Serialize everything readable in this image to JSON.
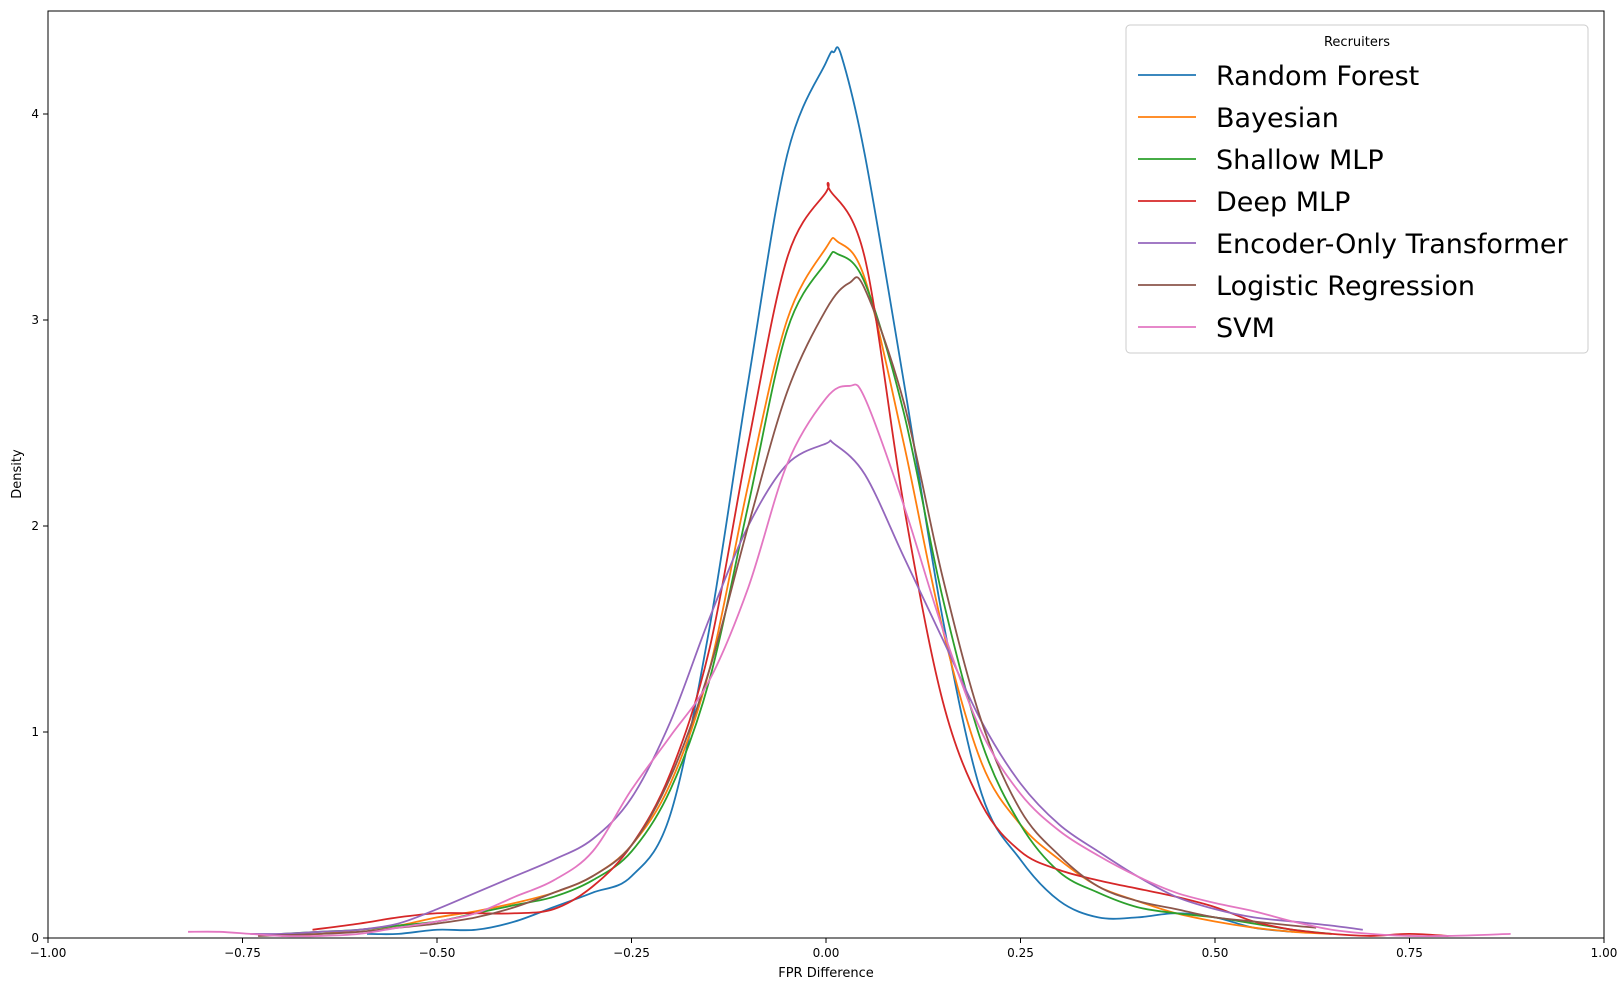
{
  "chart_data": {
    "type": "line",
    "xlabel": "FPR Difference",
    "ylabel": "Density",
    "xlim": [
      -1.0,
      1.0
    ],
    "ylim": [
      0,
      4.5
    ],
    "x_ticks": [
      -1.0,
      -0.75,
      -0.5,
      -0.25,
      0.0,
      0.25,
      0.5,
      0.75,
      1.0
    ],
    "x_tick_labels": [
      "−1.00",
      "−0.75",
      "−0.50",
      "−0.25",
      "0.00",
      "0.25",
      "0.50",
      "0.75",
      "1.00"
    ],
    "y_ticks": [
      0,
      1,
      2,
      3,
      4
    ],
    "y_tick_labels": [
      "0",
      "1",
      "2",
      "3",
      "4"
    ],
    "grid": false,
    "legend": {
      "title": "Recruiters",
      "placement": "top-right"
    },
    "series": [
      {
        "name": "Random Forest",
        "color": "#1f77b4",
        "x": [
          -0.59,
          -0.55,
          -0.5,
          -0.45,
          -0.4,
          -0.35,
          -0.3,
          -0.25,
          -0.2,
          -0.15,
          -0.1,
          -0.05,
          0.0,
          0.01,
          0.02,
          0.05,
          0.1,
          0.15,
          0.2,
          0.25,
          0.3,
          0.35,
          0.4,
          0.45,
          0.5,
          0.55,
          0.6
        ],
        "y": [
          0.02,
          0.02,
          0.04,
          0.04,
          0.08,
          0.15,
          0.22,
          0.3,
          0.6,
          1.5,
          2.7,
          3.8,
          4.25,
          4.3,
          4.28,
          3.8,
          2.7,
          1.55,
          0.7,
          0.38,
          0.18,
          0.1,
          0.1,
          0.12,
          0.1,
          0.05,
          0.03
        ]
      },
      {
        "name": "Bayesian",
        "color": "#ff7f0e",
        "x": [
          -0.7,
          -0.65,
          -0.6,
          -0.55,
          -0.5,
          -0.45,
          -0.4,
          -0.35,
          -0.3,
          -0.25,
          -0.2,
          -0.15,
          -0.1,
          -0.05,
          0.0,
          0.015,
          0.05,
          0.1,
          0.15,
          0.2,
          0.25,
          0.3,
          0.35,
          0.4,
          0.45,
          0.5,
          0.55,
          0.6,
          0.65
        ],
        "y": [
          0.01,
          0.02,
          0.04,
          0.06,
          0.1,
          0.13,
          0.17,
          0.22,
          0.3,
          0.45,
          0.75,
          1.3,
          2.2,
          3.0,
          3.35,
          3.38,
          3.2,
          2.4,
          1.5,
          0.85,
          0.55,
          0.38,
          0.25,
          0.18,
          0.12,
          0.08,
          0.05,
          0.03,
          0.02
        ]
      },
      {
        "name": "Shallow MLP",
        "color": "#2ca02c",
        "x": [
          -0.7,
          -0.65,
          -0.6,
          -0.55,
          -0.5,
          -0.45,
          -0.4,
          -0.35,
          -0.3,
          -0.25,
          -0.2,
          -0.15,
          -0.1,
          -0.05,
          0.0,
          0.015,
          0.05,
          0.1,
          0.15,
          0.2,
          0.25,
          0.3,
          0.35,
          0.4,
          0.45,
          0.5,
          0.55,
          0.6,
          0.65
        ],
        "y": [
          0.02,
          0.03,
          0.04,
          0.06,
          0.08,
          0.12,
          0.16,
          0.2,
          0.28,
          0.42,
          0.72,
          1.25,
          2.1,
          2.95,
          3.28,
          3.32,
          3.18,
          2.55,
          1.65,
          0.95,
          0.55,
          0.32,
          0.22,
          0.15,
          0.12,
          0.1,
          0.07,
          0.04,
          0.02
        ]
      },
      {
        "name": "Deep MLP",
        "color": "#d62728",
        "x": [
          -0.66,
          -0.6,
          -0.55,
          -0.5,
          -0.45,
          -0.4,
          -0.35,
          -0.3,
          -0.25,
          -0.2,
          -0.15,
          -0.1,
          -0.05,
          0.0,
          0.005,
          0.05,
          0.1,
          0.15,
          0.2,
          0.25,
          0.3,
          0.35,
          0.4,
          0.45,
          0.5,
          0.55,
          0.6,
          0.65,
          0.7,
          0.75,
          0.8
        ],
        "y": [
          0.04,
          0.07,
          0.1,
          0.12,
          0.12,
          0.12,
          0.14,
          0.25,
          0.45,
          0.8,
          1.4,
          2.4,
          3.3,
          3.62,
          3.63,
          3.3,
          2.1,
          1.15,
          0.65,
          0.42,
          0.33,
          0.28,
          0.24,
          0.2,
          0.15,
          0.08,
          0.04,
          0.02,
          0.01,
          0.02,
          0.01
        ]
      },
      {
        "name": "Encoder-Only Transformer",
        "color": "#9467bd",
        "x": [
          -0.74,
          -0.7,
          -0.65,
          -0.6,
          -0.55,
          -0.5,
          -0.45,
          -0.4,
          -0.35,
          -0.3,
          -0.25,
          -0.2,
          -0.15,
          -0.1,
          -0.05,
          0.0,
          0.01,
          0.05,
          0.1,
          0.15,
          0.2,
          0.25,
          0.3,
          0.35,
          0.4,
          0.45,
          0.5,
          0.55,
          0.6,
          0.65,
          0.69
        ],
        "y": [
          0.02,
          0.02,
          0.03,
          0.04,
          0.07,
          0.14,
          0.22,
          0.3,
          0.38,
          0.48,
          0.68,
          1.05,
          1.55,
          2.0,
          2.3,
          2.4,
          2.4,
          2.25,
          1.85,
          1.45,
          1.05,
          0.75,
          0.55,
          0.42,
          0.3,
          0.2,
          0.14,
          0.1,
          0.08,
          0.06,
          0.04
        ]
      },
      {
        "name": "Logistic Regression",
        "color": "#8c564b",
        "x": [
          -0.73,
          -0.65,
          -0.6,
          -0.55,
          -0.5,
          -0.45,
          -0.4,
          -0.35,
          -0.3,
          -0.25,
          -0.2,
          -0.15,
          -0.1,
          -0.05,
          0.0,
          0.03,
          0.05,
          0.1,
          0.15,
          0.2,
          0.25,
          0.3,
          0.35,
          0.4,
          0.45,
          0.5,
          0.55,
          0.6,
          0.63
        ],
        "y": [
          0.01,
          0.02,
          0.03,
          0.05,
          0.07,
          0.1,
          0.15,
          0.22,
          0.3,
          0.45,
          0.78,
          1.3,
          2.0,
          2.65,
          3.05,
          3.18,
          3.15,
          2.6,
          1.75,
          1.05,
          0.62,
          0.4,
          0.25,
          0.18,
          0.14,
          0.1,
          0.08,
          0.06,
          0.05
        ]
      },
      {
        "name": "SVM",
        "color": "#e377c2",
        "x": [
          -0.82,
          -0.78,
          -0.74,
          -0.7,
          -0.65,
          -0.6,
          -0.55,
          -0.5,
          -0.45,
          -0.4,
          -0.35,
          -0.3,
          -0.25,
          -0.2,
          -0.15,
          -0.1,
          -0.05,
          0.0,
          0.03,
          0.05,
          0.1,
          0.15,
          0.2,
          0.25,
          0.3,
          0.35,
          0.4,
          0.45,
          0.5,
          0.55,
          0.6,
          0.65,
          0.7,
          0.75,
          0.8,
          0.88
        ],
        "y": [
          0.03,
          0.03,
          0.02,
          0.01,
          0.01,
          0.02,
          0.05,
          0.08,
          0.12,
          0.2,
          0.28,
          0.42,
          0.72,
          0.98,
          1.25,
          1.7,
          2.3,
          2.62,
          2.68,
          2.62,
          2.1,
          1.5,
          1.0,
          0.7,
          0.52,
          0.4,
          0.3,
          0.22,
          0.17,
          0.13,
          0.08,
          0.04,
          0.02,
          0.01,
          0.01,
          0.02
        ]
      }
    ]
  }
}
